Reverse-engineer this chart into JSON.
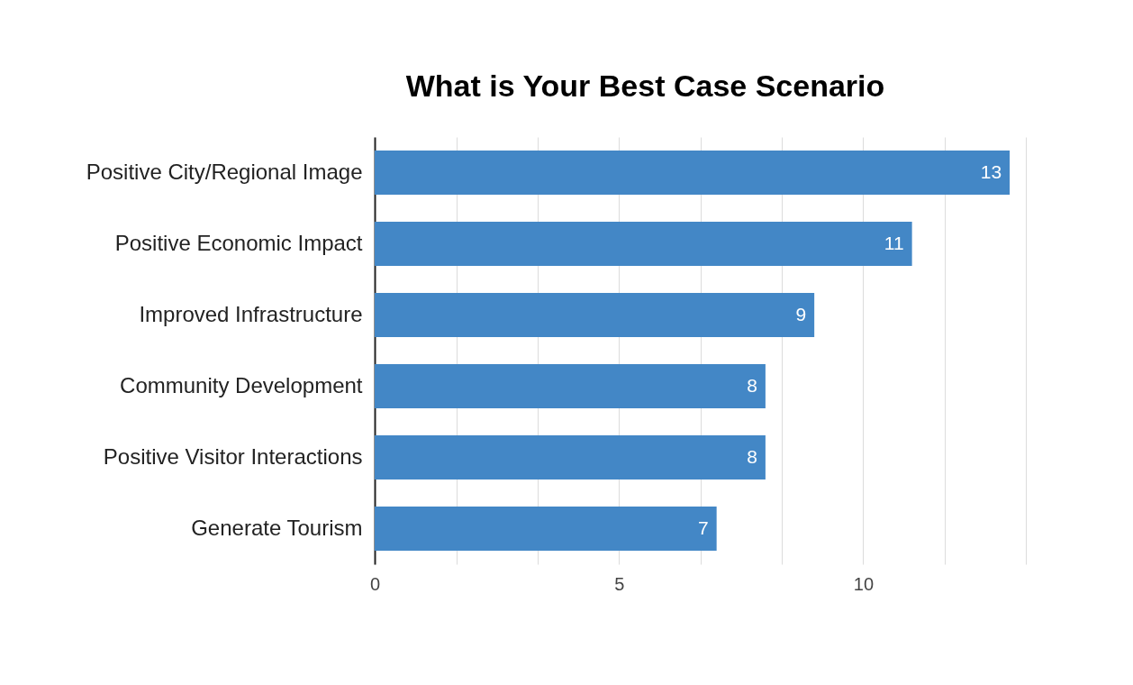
{
  "chart_data": {
    "type": "bar",
    "orientation": "horizontal",
    "title": "What is Your Best Case Scenario",
    "categories": [
      "Positive City/Regional Image",
      "Positive Economic Impact",
      "Improved Infrastructure",
      "Community Development",
      "Positive Visitor Interactions",
      "Generate Tourism"
    ],
    "values": [
      13,
      11,
      9,
      8,
      8,
      7
    ],
    "color": "#4387c6",
    "xlim": [
      0,
      13.33
    ],
    "xticks": [
      0,
      {
        "value": 1.67,
        "label": null
      },
      {
        "value": 3.33,
        "label": null
      },
      5,
      {
        "value": 6.67,
        "label": null
      },
      {
        "value": 8.33,
        "label": null
      },
      10,
      {
        "value": 11.67,
        "label": null
      },
      {
        "value": 13.33,
        "label": null
      }
    ],
    "grid": "x",
    "data_labels": true
  }
}
